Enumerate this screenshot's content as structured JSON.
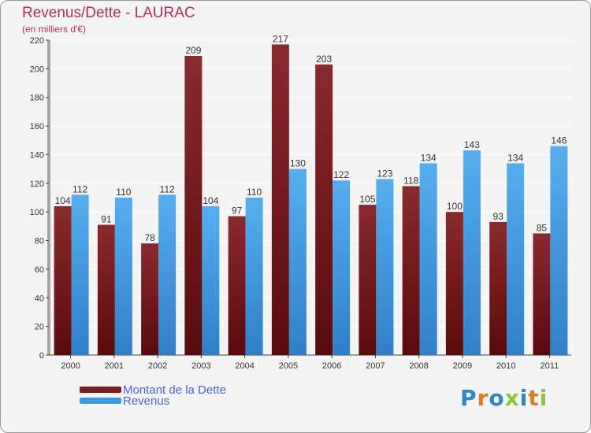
{
  "chart_data": {
    "type": "bar",
    "title": "Revenus/Dette - LAURAC",
    "subtitle": "(en milliers d'€)",
    "categories": [
      "2000",
      "2001",
      "2002",
      "2003",
      "2004",
      "2005",
      "2006",
      "2007",
      "2008",
      "2009",
      "2010",
      "2011"
    ],
    "series": [
      {
        "name": "Montant de la Dette",
        "color": "#7a1a1f",
        "values": [
          104,
          91,
          78,
          209,
          97,
          217,
          203,
          105,
          118,
          100,
          93,
          85
        ]
      },
      {
        "name": "Revenus",
        "color": "#3d9ae0",
        "values": [
          112,
          110,
          112,
          104,
          110,
          130,
          122,
          123,
          134,
          143,
          134,
          146
        ]
      }
    ],
    "ylim": [
      0,
      220
    ],
    "yticks": [
      0,
      20,
      40,
      60,
      80,
      100,
      120,
      140,
      160,
      180,
      200,
      220
    ],
    "grid": true
  },
  "logo": {
    "text": "Proxiti",
    "colors": [
      "#2f86c8",
      "#e07a1f",
      "#2f86c8",
      "#8cc63f",
      "#2f86c8",
      "#e07a1f",
      "#8cc63f"
    ]
  }
}
